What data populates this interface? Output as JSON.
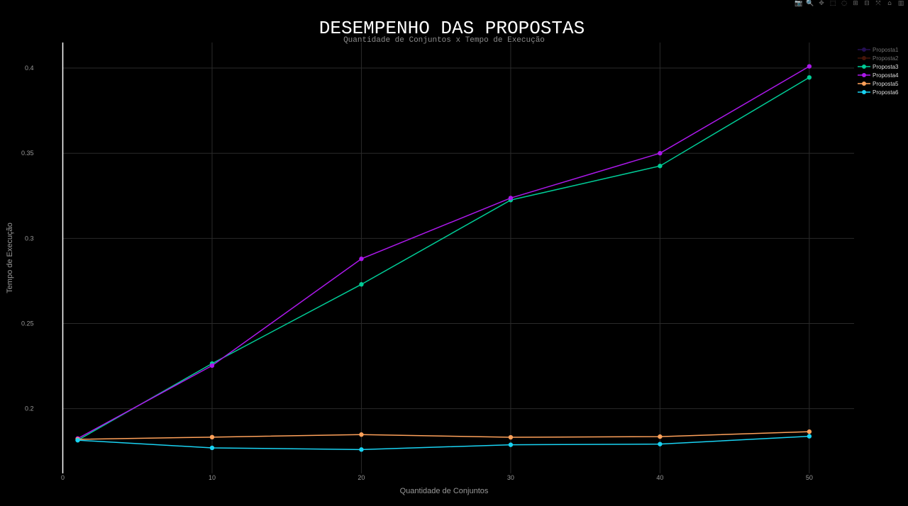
{
  "toolbar": {
    "items": [
      {
        "name": "camera-icon",
        "glyph": "📷"
      },
      {
        "name": "zoom-icon",
        "glyph": "🔍"
      },
      {
        "name": "pan-icon",
        "glyph": "✥"
      },
      {
        "name": "box-select-icon",
        "glyph": "⬚"
      },
      {
        "name": "lasso-select-icon",
        "glyph": "◌"
      },
      {
        "name": "zoom-in-icon",
        "glyph": "⊞"
      },
      {
        "name": "zoom-out-icon",
        "glyph": "⊟"
      },
      {
        "name": "autoscale-icon",
        "glyph": "⤧"
      },
      {
        "name": "reset-axes-icon",
        "glyph": "⌂"
      },
      {
        "name": "plotly-logo-icon",
        "glyph": "▥"
      }
    ]
  },
  "chart_data": {
    "type": "line",
    "title": "DESEMPENHO DAS PROPOSTAS",
    "subtitle": "Quantidade de Conjuntos x Tempo de Execução",
    "xlabel": "Quantidade de Conjuntos",
    "ylabel": "Tempo de Execução",
    "xlim": [
      0,
      53
    ],
    "ylim": [
      0.162,
      0.415
    ],
    "xticks": [
      0,
      10,
      20,
      30,
      40,
      50
    ],
    "yticks": [
      0.2,
      0.25,
      0.3,
      0.35,
      0.4
    ],
    "ytick_labels": [
      "0.2",
      "0.25",
      "0.3",
      "0.35",
      "0.4"
    ],
    "grid": true,
    "legend_position": "top-right",
    "background": "#000000",
    "series": [
      {
        "name": "Proposta1",
        "color": "#4a1fa8",
        "visible": false,
        "x": [],
        "y": []
      },
      {
        "name": "Proposta2",
        "color": "#8b2b12",
        "visible": false,
        "x": [],
        "y": []
      },
      {
        "name": "Proposta3",
        "color": "#00cc96",
        "visible": true,
        "x": [
          1,
          10,
          20,
          30,
          40,
          50
        ],
        "y": [
          0.1815,
          0.2265,
          0.273,
          0.3225,
          0.3425,
          0.3945
        ]
      },
      {
        "name": "Proposta4",
        "color": "#ab18ea",
        "visible": true,
        "x": [
          1,
          10,
          20,
          30,
          40,
          50
        ],
        "y": [
          0.1825,
          0.2253,
          0.288,
          0.3237,
          0.35,
          0.401
        ]
      },
      {
        "name": "Proposta5",
        "color": "#ffa15a",
        "visible": true,
        "x": [
          1,
          10,
          20,
          30,
          40,
          50
        ],
        "y": [
          0.182,
          0.1833,
          0.1848,
          0.1832,
          0.1836,
          0.1865
        ]
      },
      {
        "name": "Proposta6",
        "color": "#19d3f3",
        "visible": true,
        "x": [
          1,
          10,
          20,
          30,
          40,
          50
        ],
        "y": [
          0.1815,
          0.177,
          0.176,
          0.1788,
          0.1792,
          0.1838
        ]
      }
    ]
  }
}
